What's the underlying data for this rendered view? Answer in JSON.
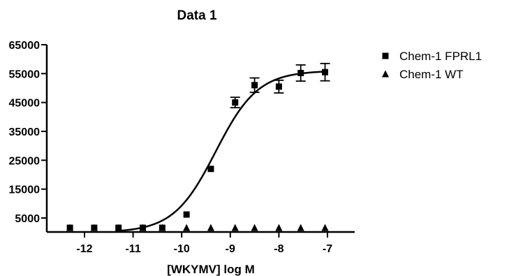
{
  "chart_data": {
    "type": "scatter",
    "title": "Data 1",
    "xlabel": "[WKYMV] log M",
    "ylabel": "",
    "xlim": [
      -12.5,
      -6.8
    ],
    "ylim": [
      0,
      65000
    ],
    "x_ticks": [
      -12,
      -11,
      -10,
      -9,
      -8,
      -7
    ],
    "y_ticks": [
      5000,
      15000,
      25000,
      35000,
      45000,
      55000,
      65000
    ],
    "legend_position": "right",
    "series": [
      {
        "name": "Chem-1 FPRL1",
        "marker": "square",
        "points": [
          {
            "x": -12.3,
            "y": 1200,
            "err": 0
          },
          {
            "x": -11.8,
            "y": 1200,
            "err": 0
          },
          {
            "x": -11.3,
            "y": 1200,
            "err": 0
          },
          {
            "x": -10.8,
            "y": 1200,
            "err": 0
          },
          {
            "x": -10.4,
            "y": 1200,
            "err": 0
          },
          {
            "x": -9.9,
            "y": 6200,
            "err": 0
          },
          {
            "x": -9.4,
            "y": 22000,
            "err": 0
          },
          {
            "x": -8.9,
            "y": 45000,
            "err": 1800
          },
          {
            "x": -8.5,
            "y": 51000,
            "err": 2500
          },
          {
            "x": -8.0,
            "y": 50500,
            "err": 2200
          },
          {
            "x": -7.55,
            "y": 55200,
            "err": 2800
          },
          {
            "x": -7.05,
            "y": 55500,
            "err": 3000
          }
        ],
        "fit": {
          "bottom": 0,
          "top": 56000,
          "logEC50": -9.3,
          "hill": 1.0
        }
      },
      {
        "name": "Chem-1 WT",
        "marker": "triangle",
        "points": [
          {
            "x": -12.3,
            "y": 1000
          },
          {
            "x": -11.8,
            "y": 1000
          },
          {
            "x": -11.3,
            "y": 1000
          },
          {
            "x": -10.8,
            "y": 1000
          },
          {
            "x": -10.4,
            "y": 1000
          },
          {
            "x": -9.9,
            "y": 1000
          },
          {
            "x": -9.4,
            "y": 1000
          },
          {
            "x": -8.9,
            "y": 1000
          },
          {
            "x": -8.5,
            "y": 1000
          },
          {
            "x": -8.0,
            "y": 1000
          },
          {
            "x": -7.55,
            "y": 1000
          },
          {
            "x": -7.05,
            "y": 1000
          }
        ]
      }
    ]
  }
}
